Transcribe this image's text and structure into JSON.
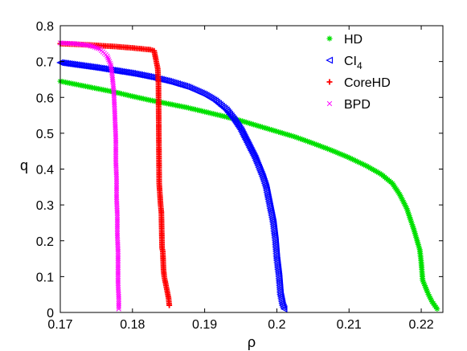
{
  "chart_data": {
    "type": "scatter",
    "title": "",
    "xlabel": "ρ",
    "ylabel": "q",
    "xlim": [
      0.17,
      0.223
    ],
    "ylim": [
      0,
      0.8
    ],
    "xticks": [
      0.17,
      0.18,
      0.19,
      0.2,
      0.21,
      0.22
    ],
    "xtick_labels": [
      "0.17",
      "0.18",
      "0.19",
      "0.2",
      "0.21",
      "0.22"
    ],
    "yticks": [
      0,
      0.1,
      0.2,
      0.3,
      0.4,
      0.5,
      0.6,
      0.7,
      0.8
    ],
    "ytick_labels": [
      "0",
      "0.1",
      "0.2",
      "0.3",
      "0.4",
      "0.5",
      "0.6",
      "0.7",
      "0.8"
    ],
    "grid": false,
    "legend_position": "top-right",
    "legend": [
      {
        "label": "HD",
        "sub": "",
        "marker": "asterisk",
        "color": "#00e000"
      },
      {
        "label": "CI",
        "sub": "4",
        "marker": "triangle-left",
        "color": "#0000ff"
      },
      {
        "label": "CoreHD",
        "sub": "",
        "marker": "plus",
        "color": "#ff0000"
      },
      {
        "label": "BPD",
        "sub": "",
        "marker": "x",
        "color": "#ff00ff"
      }
    ],
    "series": [
      {
        "name": "HD",
        "color": "#00e000",
        "marker": "asterisk",
        "points": [
          [
            0.17,
            0.645
          ],
          [
            0.1725,
            0.635
          ],
          [
            0.175,
            0.625
          ],
          [
            0.1775,
            0.615
          ],
          [
            0.18,
            0.603
          ],
          [
            0.1825,
            0.592
          ],
          [
            0.185,
            0.582
          ],
          [
            0.1875,
            0.572
          ],
          [
            0.19,
            0.56
          ],
          [
            0.1925,
            0.548
          ],
          [
            0.195,
            0.535
          ],
          [
            0.1975,
            0.52
          ],
          [
            0.2,
            0.505
          ],
          [
            0.2025,
            0.49
          ],
          [
            0.205,
            0.472
          ],
          [
            0.2075,
            0.453
          ],
          [
            0.21,
            0.432
          ],
          [
            0.2125,
            0.408
          ],
          [
            0.2145,
            0.385
          ],
          [
            0.216,
            0.36
          ],
          [
            0.217,
            0.33
          ],
          [
            0.218,
            0.29
          ],
          [
            0.219,
            0.23
          ],
          [
            0.2198,
            0.175
          ],
          [
            0.22,
            0.14
          ],
          [
            0.2202,
            0.09
          ],
          [
            0.221,
            0.05
          ],
          [
            0.2215,
            0.03
          ],
          [
            0.2222,
            0.01
          ]
        ]
      },
      {
        "name": "CI4",
        "color": "#0000ff",
        "marker": "triangle-left",
        "points": [
          [
            0.17,
            0.697
          ],
          [
            0.1725,
            0.69
          ],
          [
            0.175,
            0.683
          ],
          [
            0.1775,
            0.675
          ],
          [
            0.18,
            0.667
          ],
          [
            0.1825,
            0.657
          ],
          [
            0.185,
            0.645
          ],
          [
            0.1875,
            0.63
          ],
          [
            0.19,
            0.608
          ],
          [
            0.1915,
            0.59
          ],
          [
            0.193,
            0.565
          ],
          [
            0.194,
            0.54
          ],
          [
            0.195,
            0.51
          ],
          [
            0.196,
            0.47
          ],
          [
            0.197,
            0.43
          ],
          [
            0.198,
            0.38
          ],
          [
            0.1985,
            0.35
          ],
          [
            0.199,
            0.3
          ],
          [
            0.1995,
            0.25
          ],
          [
            0.1998,
            0.2
          ],
          [
            0.2,
            0.15
          ],
          [
            0.2003,
            0.1
          ],
          [
            0.2005,
            0.05
          ],
          [
            0.2008,
            0.02
          ],
          [
            0.201,
            0.01
          ]
        ]
      },
      {
        "name": "CoreHD",
        "color": "#ff0000",
        "marker": "plus",
        "points": [
          [
            0.17,
            0.75
          ],
          [
            0.1725,
            0.748
          ],
          [
            0.175,
            0.745
          ],
          [
            0.1775,
            0.742
          ],
          [
            0.18,
            0.738
          ],
          [
            0.1825,
            0.733
          ],
          [
            0.183,
            0.73
          ],
          [
            0.1833,
            0.7
          ],
          [
            0.1835,
            0.68
          ],
          [
            0.1836,
            0.64
          ],
          [
            0.1837,
            0.36
          ],
          [
            0.1838,
            0.33
          ],
          [
            0.1839,
            0.3
          ],
          [
            0.184,
            0.28
          ],
          [
            0.1841,
            0.18
          ],
          [
            0.1842,
            0.17
          ],
          [
            0.1843,
            0.12
          ],
          [
            0.1844,
            0.1
          ],
          [
            0.1846,
            0.08
          ],
          [
            0.1848,
            0.06
          ],
          [
            0.185,
            0.04
          ],
          [
            0.1851,
            0.02
          ]
        ]
      },
      {
        "name": "BPD",
        "color": "#ff00ff",
        "marker": "x",
        "points": [
          [
            0.17,
            0.752
          ],
          [
            0.172,
            0.75
          ],
          [
            0.174,
            0.745
          ],
          [
            0.1755,
            0.735
          ],
          [
            0.1765,
            0.715
          ],
          [
            0.177,
            0.69
          ],
          [
            0.1772,
            0.66
          ],
          [
            0.1774,
            0.62
          ],
          [
            0.1775,
            0.58
          ],
          [
            0.1776,
            0.53
          ],
          [
            0.1777,
            0.48
          ],
          [
            0.1777,
            0.42
          ],
          [
            0.1778,
            0.37
          ],
          [
            0.1778,
            0.32
          ],
          [
            0.1779,
            0.27
          ],
          [
            0.1779,
            0.22
          ],
          [
            0.178,
            0.17
          ],
          [
            0.178,
            0.12
          ],
          [
            0.178,
            0.08
          ],
          [
            0.1781,
            0.04
          ],
          [
            0.1781,
            0.01
          ]
        ]
      }
    ]
  }
}
